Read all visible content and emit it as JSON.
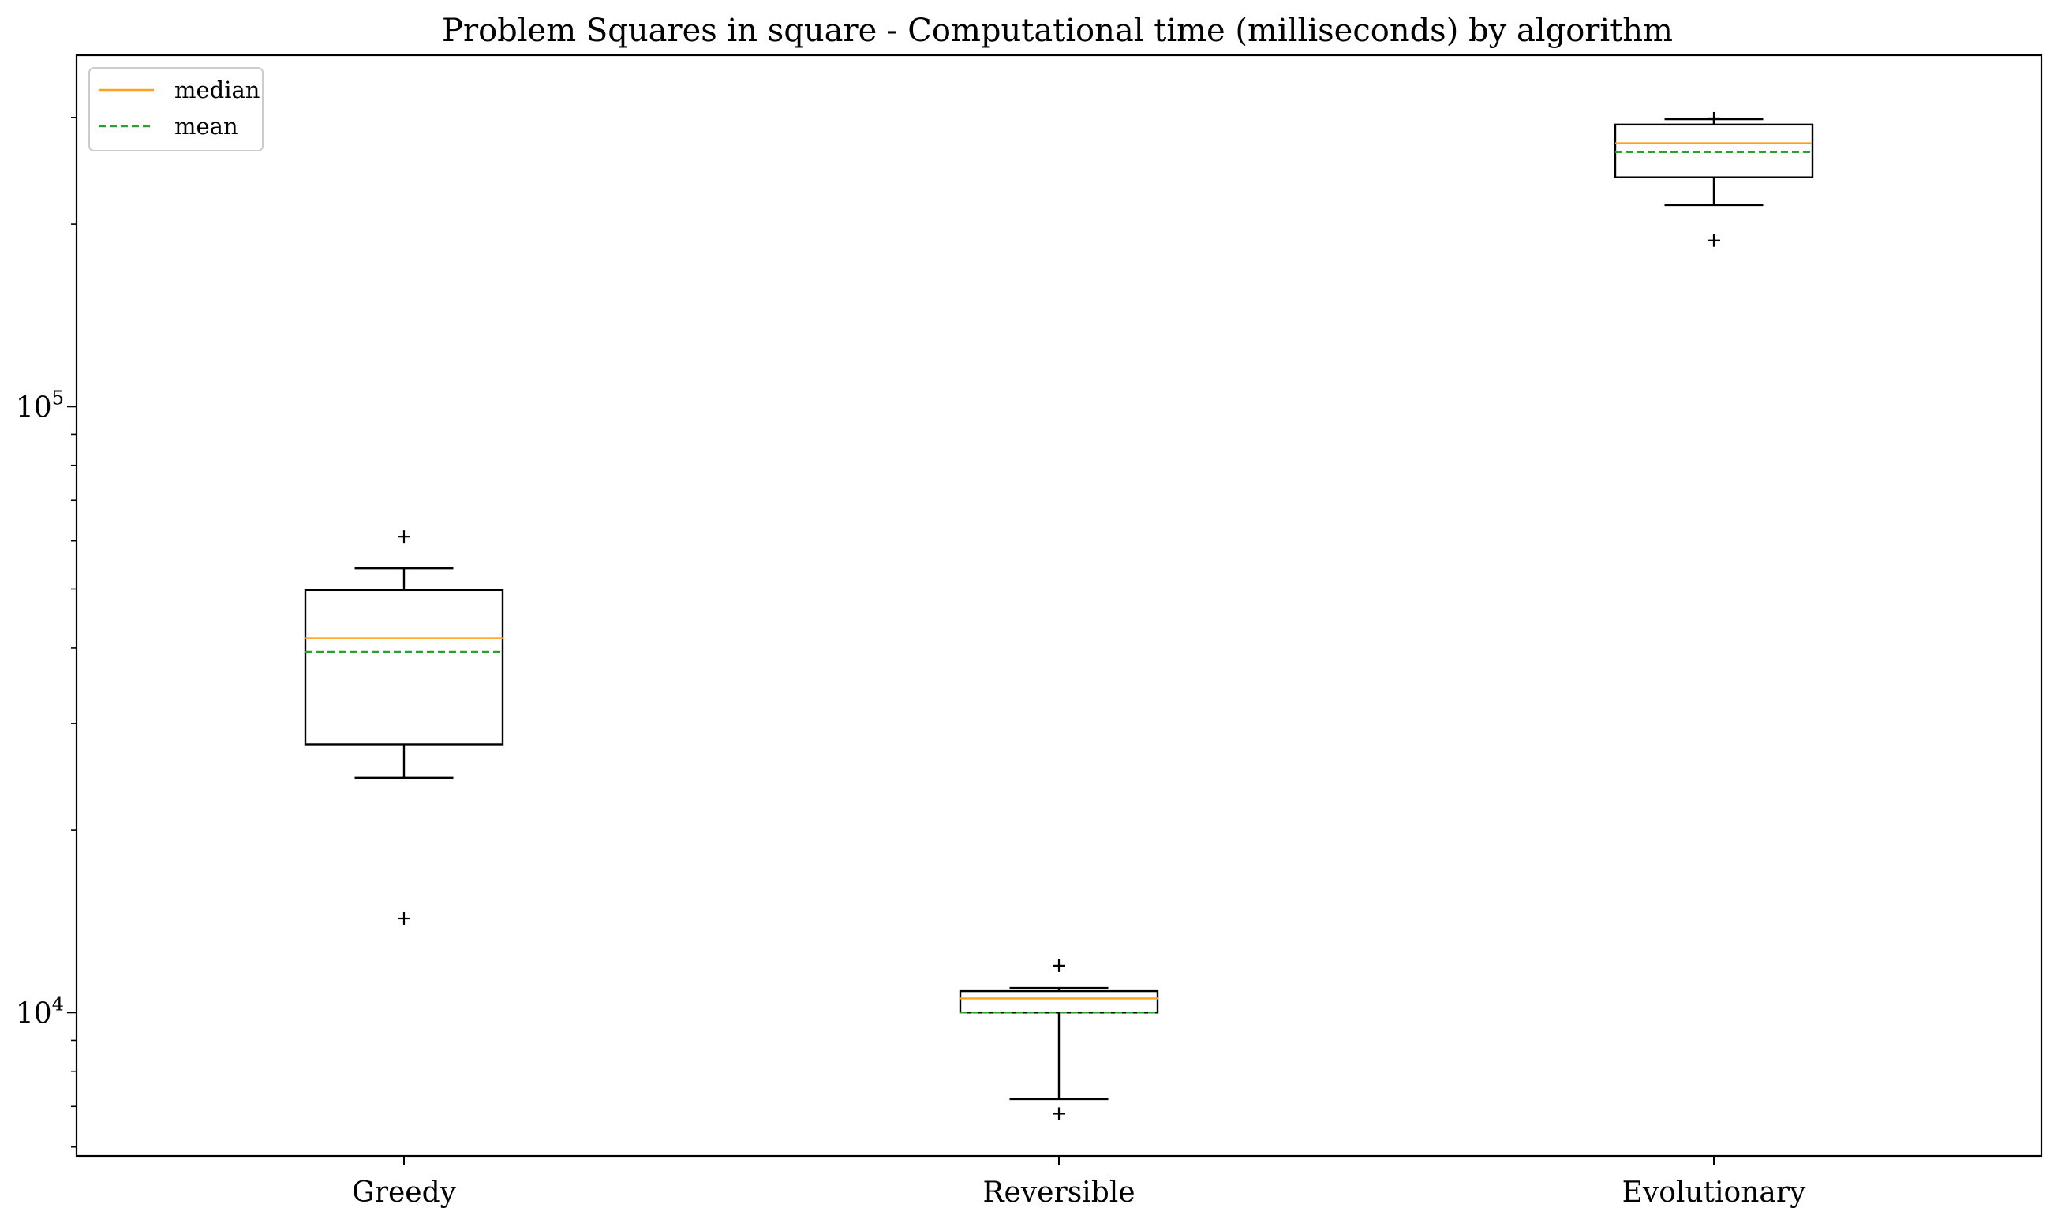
{
  "chart_data": {
    "type": "box",
    "title": "Problem Squares in square - Computational time (milliseconds) by algorithm",
    "xlabel": "",
    "ylabel": "",
    "yscale": "log",
    "ylim": [
      5800,
      380000
    ],
    "y_ticks": [
      {
        "value": 10000,
        "base": "10",
        "exp": "4"
      },
      {
        "value": 100000,
        "base": "10",
        "exp": "5"
      }
    ],
    "categories": [
      "Greedy",
      "Reversible",
      "Evolutionary"
    ],
    "boxes": [
      {
        "label": "Greedy",
        "whisker_low": 24400,
        "q1": 27700,
        "median": 41500,
        "mean": 39400,
        "q3": 49800,
        "whisker_high": 54100,
        "outliers": [
          61000,
          14300
        ]
      },
      {
        "label": "Reversible",
        "whisker_low": 7200,
        "q1": 10000,
        "median": 10550,
        "mean": 10000,
        "q3": 10850,
        "whisker_high": 10980,
        "outliers": [
          11950,
          6810
        ]
      },
      {
        "label": "Evolutionary",
        "whisker_low": 215000,
        "q1": 239000,
        "median": 272000,
        "mean": 263000,
        "q3": 292000,
        "whisker_high": 298000,
        "outliers": [
          299000,
          188000
        ]
      }
    ],
    "legend": {
      "position": "top-left",
      "entries": [
        {
          "label": "median",
          "color": "#ff9f1c",
          "style": "solid"
        },
        {
          "label": "mean",
          "color": "#2ca02c",
          "style": "dashed"
        }
      ]
    },
    "grid": false,
    "colors": {
      "box": "#000000",
      "median": "#ff9f1c",
      "mean": "#2ca02c"
    }
  }
}
